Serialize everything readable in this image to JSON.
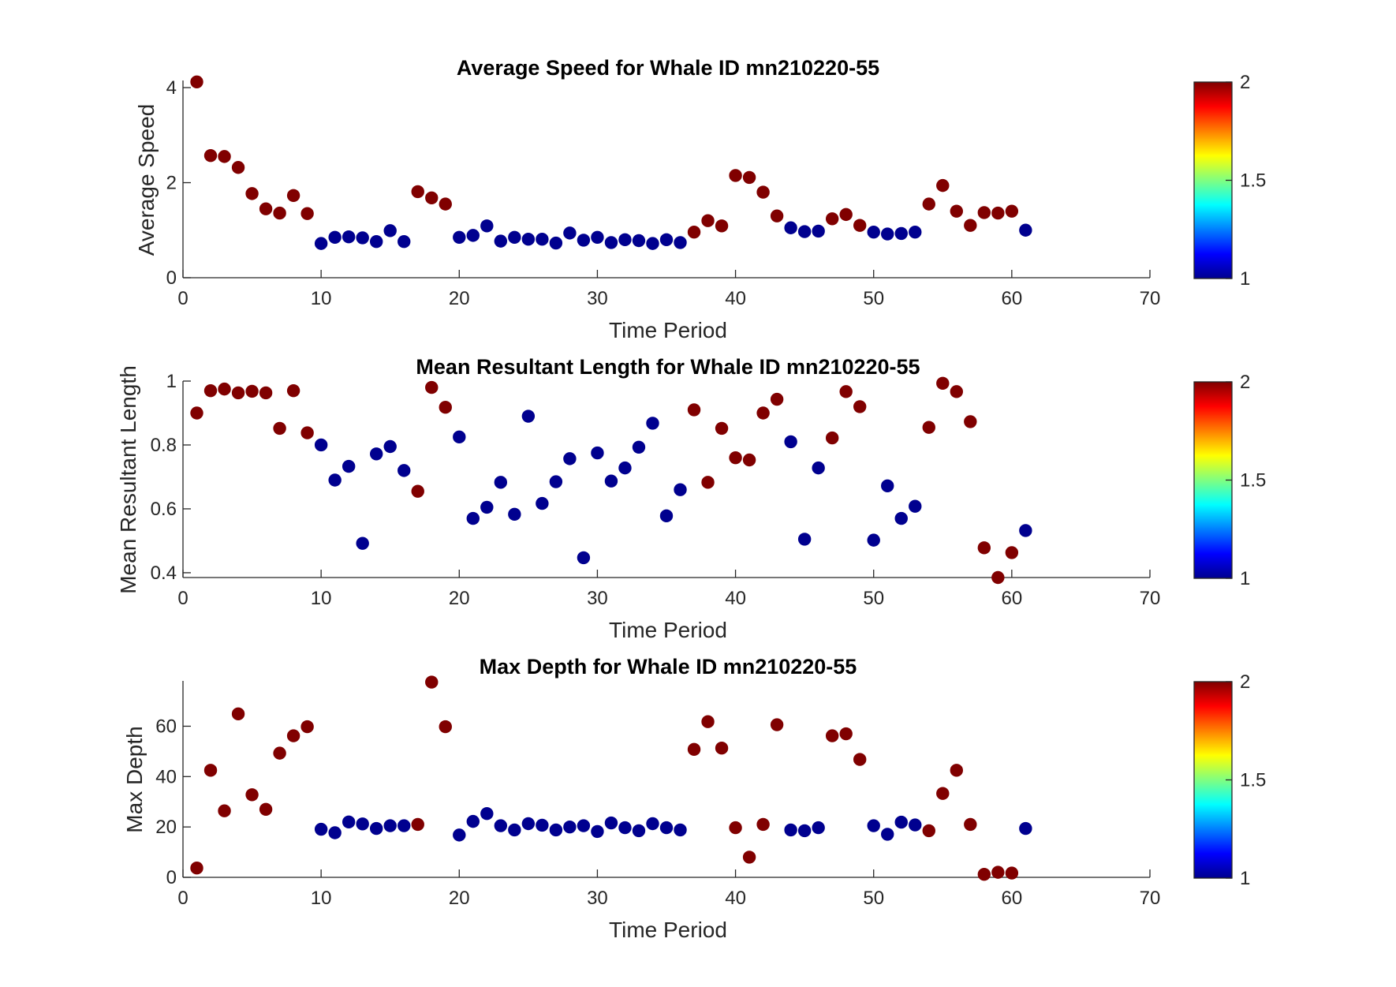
{
  "colors": {
    "low": "#00008f",
    "high": "#800000",
    "axis": "#262626"
  },
  "colorbar": {
    "min": 1,
    "max": 2,
    "ticks": [
      "1",
      "1.5",
      "2"
    ]
  },
  "chart_data": [
    {
      "type": "scatter",
      "title": "Average Speed for Whale ID mn210220-55",
      "xlabel": "Time Period",
      "ylabel": "Average Speed",
      "xlim": [
        0,
        70
      ],
      "ylim": [
        0,
        4.15
      ],
      "xticks": [
        0,
        10,
        20,
        30,
        40,
        50,
        60,
        70
      ],
      "yticks": [
        0,
        2,
        4
      ],
      "colorbar_range": [
        1,
        2
      ],
      "x": [
        1,
        2,
        3,
        4,
        5,
        6,
        7,
        8,
        9,
        10,
        11,
        12,
        13,
        14,
        15,
        16,
        17,
        18,
        19,
        20,
        21,
        22,
        23,
        24,
        25,
        26,
        27,
        28,
        29,
        30,
        31,
        32,
        33,
        34,
        35,
        36,
        37,
        38,
        39,
        40,
        41,
        42,
        43,
        44,
        45,
        46,
        47,
        48,
        49,
        50,
        51,
        52,
        53,
        54,
        55,
        56,
        57,
        58,
        59,
        60,
        61
      ],
      "y": [
        4.12,
        2.57,
        2.55,
        2.32,
        1.77,
        1.45,
        1.36,
        1.73,
        1.35,
        0.72,
        0.85,
        0.86,
        0.84,
        0.76,
        0.99,
        0.76,
        1.81,
        1.68,
        1.55,
        0.85,
        0.89,
        1.09,
        0.77,
        0.85,
        0.81,
        0.81,
        0.73,
        0.94,
        0.79,
        0.85,
        0.74,
        0.8,
        0.78,
        0.72,
        0.8,
        0.74,
        0.96,
        1.2,
        1.09,
        2.15,
        2.11,
        1.8,
        1.3,
        1.05,
        0.97,
        0.98,
        1.24,
        1.33,
        1.1,
        0.96,
        0.92,
        0.93,
        0.96,
        1.55,
        1.94,
        1.4,
        1.1,
        1.37,
        1.36,
        1.4,
        1.0
      ],
      "color_value": [
        2,
        2,
        2,
        2,
        2,
        2,
        2,
        2,
        2,
        1,
        1,
        1,
        1,
        1,
        1,
        1,
        2,
        2,
        2,
        1,
        1,
        1,
        1,
        1,
        1,
        1,
        1,
        1,
        1,
        1,
        1,
        1,
        1,
        1,
        1,
        1,
        2,
        2,
        2,
        2,
        2,
        2,
        2,
        1,
        1,
        1,
        2,
        2,
        2,
        1,
        1,
        1,
        1,
        2,
        2,
        2,
        2,
        2,
        2,
        2,
        1
      ],
      "grid": false
    },
    {
      "type": "scatter",
      "title": "Mean Resultant Length for Whale ID mn210220-55",
      "xlabel": "Time Period",
      "ylabel": "Mean Resultant Length",
      "xlim": [
        0,
        70
      ],
      "ylim": [
        0.385,
        1.0
      ],
      "xticks": [
        0,
        10,
        20,
        30,
        40,
        50,
        60,
        70
      ],
      "yticks": [
        0.4,
        0.6,
        0.8,
        1
      ],
      "yticklabels": [
        "0.4",
        "0.6",
        "0.8",
        "1"
      ],
      "colorbar_range": [
        1,
        2
      ],
      "x": [
        1,
        2,
        3,
        4,
        5,
        6,
        7,
        8,
        9,
        10,
        11,
        12,
        13,
        14,
        15,
        16,
        17,
        18,
        19,
        20,
        21,
        22,
        23,
        24,
        25,
        26,
        27,
        28,
        29,
        30,
        31,
        32,
        33,
        34,
        35,
        36,
        37,
        38,
        39,
        40,
        41,
        42,
        43,
        44,
        45,
        46,
        47,
        48,
        49,
        50,
        51,
        52,
        53,
        54,
        55,
        56,
        57,
        58,
        59,
        60,
        61
      ],
      "y": [
        0.9,
        0.97,
        0.975,
        0.963,
        0.968,
        0.963,
        0.852,
        0.97,
        0.838,
        0.8,
        0.69,
        0.733,
        0.492,
        0.772,
        0.795,
        0.72,
        0.655,
        0.98,
        0.918,
        0.825,
        0.57,
        0.605,
        0.683,
        0.583,
        0.89,
        0.617,
        0.685,
        0.757,
        0.447,
        0.775,
        0.687,
        0.728,
        0.793,
        0.868,
        0.578,
        0.66,
        0.91,
        0.683,
        0.852,
        0.76,
        0.753,
        0.9,
        0.943,
        0.81,
        0.505,
        0.728,
        0.822,
        0.967,
        0.92,
        0.502,
        0.672,
        0.57,
        0.608,
        0.855,
        0.993,
        0.967,
        0.873,
        0.478,
        0.385,
        0.463,
        0.532
      ],
      "color_value": [
        2,
        2,
        2,
        2,
        2,
        2,
        2,
        2,
        2,
        1,
        1,
        1,
        1,
        1,
        1,
        1,
        2,
        2,
        2,
        1,
        1,
        1,
        1,
        1,
        1,
        1,
        1,
        1,
        1,
        1,
        1,
        1,
        1,
        1,
        1,
        1,
        2,
        2,
        2,
        2,
        2,
        2,
        2,
        1,
        1,
        1,
        2,
        2,
        2,
        1,
        1,
        1,
        1,
        2,
        2,
        2,
        2,
        2,
        2,
        2,
        1
      ],
      "grid": false
    },
    {
      "type": "scatter",
      "title": "Max Depth for Whale ID mn210220-55",
      "xlabel": "Time Period",
      "ylabel": "Max Depth",
      "xlim": [
        0,
        70
      ],
      "ylim": [
        0,
        78
      ],
      "xticks": [
        0,
        10,
        20,
        30,
        40,
        50,
        60,
        70
      ],
      "yticks": [
        0,
        20,
        40,
        60
      ],
      "colorbar_range": [
        1,
        2
      ],
      "x": [
        1,
        2,
        3,
        4,
        5,
        6,
        7,
        8,
        9,
        10,
        11,
        12,
        13,
        14,
        15,
        16,
        17,
        18,
        19,
        20,
        21,
        22,
        23,
        24,
        25,
        26,
        27,
        28,
        29,
        30,
        31,
        32,
        33,
        34,
        35,
        36,
        37,
        38,
        39,
        40,
        41,
        42,
        43,
        44,
        45,
        46,
        47,
        48,
        49,
        50,
        51,
        52,
        53,
        54,
        55,
        56,
        57,
        58,
        59,
        60,
        61
      ],
      "y": [
        3.7,
        42.5,
        26.4,
        64.9,
        32.8,
        27.0,
        49.3,
        56.2,
        59.8,
        19.1,
        17.7,
        22.0,
        21.2,
        19.4,
        20.5,
        20.5,
        21.0,
        77.5,
        59.8,
        16.8,
        22.2,
        25.3,
        20.5,
        18.8,
        21.3,
        20.7,
        18.8,
        20.0,
        20.5,
        18.2,
        21.6,
        19.7,
        18.5,
        21.3,
        19.7,
        18.8,
        50.8,
        61.8,
        51.3,
        19.7,
        8.0,
        21.0,
        60.6,
        18.8,
        18.5,
        19.7,
        56.2,
        57.0,
        46.8,
        20.5,
        17.1,
        21.9,
        20.8,
        18.5,
        33.3,
        42.5,
        21.0,
        1.2,
        2.0,
        1.7,
        19.4
      ],
      "color_value": [
        2,
        2,
        2,
        2,
        2,
        2,
        2,
        2,
        2,
        1,
        1,
        1,
        1,
        1,
        1,
        1,
        2,
        2,
        2,
        1,
        1,
        1,
        1,
        1,
        1,
        1,
        1,
        1,
        1,
        1,
        1,
        1,
        1,
        1,
        1,
        1,
        2,
        2,
        2,
        2,
        2,
        2,
        2,
        1,
        1,
        1,
        2,
        2,
        2,
        1,
        1,
        1,
        1,
        2,
        2,
        2,
        2,
        2,
        2,
        2,
        1
      ],
      "grid": false
    }
  ]
}
